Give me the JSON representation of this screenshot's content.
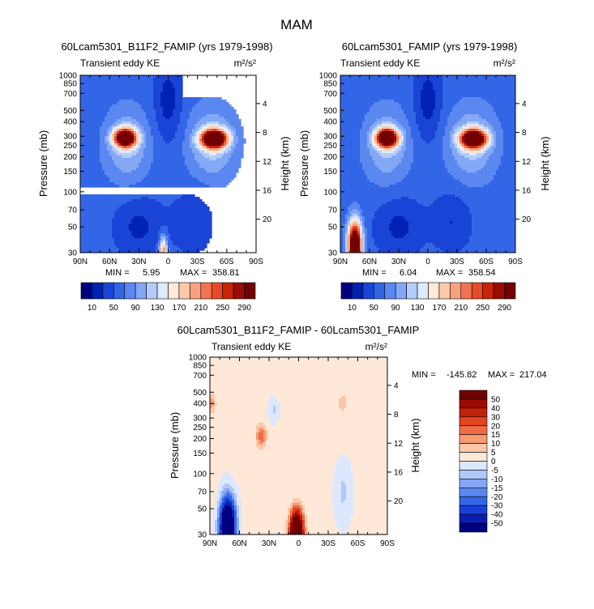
{
  "figure": {
    "season": "MAM",
    "colors": {
      "seq": [
        "#00007f",
        "#0022b3",
        "#1a44d6",
        "#3366e6",
        "#5a88f0",
        "#84a8f5",
        "#b3ccfa",
        "#ddeaff",
        "#ffe9d9",
        "#fcc9ac",
        "#f9a27f",
        "#f27352",
        "#e64a28",
        "#c82406",
        "#9c0b00",
        "#720000"
      ],
      "div": [
        "#00007f",
        "#0a1fb0",
        "#1a40d8",
        "#3366e6",
        "#5c86f0",
        "#86a7f5",
        "#b0c8fa",
        "#dde8ff",
        "#ffe8d8",
        "#fcc6a8",
        "#f89b74",
        "#f06c47",
        "#e2451f",
        "#c3220a",
        "#9c0900",
        "#700000"
      ]
    }
  },
  "chart_data": [
    {
      "type": "heatmap",
      "title": "60Lcam5301_B11F2_FAMIP (yrs 1979-1998)",
      "subtitle_left": "Transient eddy KE",
      "units": "m²/s²",
      "xlabel": "",
      "ylabel": "Pressure (mb)",
      "ylabel_right": "Height (km)",
      "x_ticks": [
        "90N",
        "60N",
        "30N",
        "0",
        "30S",
        "60S",
        "90S"
      ],
      "y_ticks": [
        "30",
        "50",
        "70",
        "100",
        "150",
        "200",
        "250",
        "300",
        "400",
        "500",
        "700",
        "850",
        "1000"
      ],
      "right_ticks": [
        "20",
        "16",
        "12",
        "8",
        "4"
      ],
      "stats": {
        "min_label": "MIN =",
        "min": "5.95",
        "max_label": "MAX =",
        "max": "358.81"
      },
      "colorbar_labels": [
        "10",
        "50",
        "90",
        "130",
        "170",
        "210",
        "250",
        "290"
      ],
      "features": [
        {
          "lat": 44,
          "p": 290,
          "peak": 320,
          "slat": 11,
          "sp": 0.18
        },
        {
          "lat": -47,
          "p": 285,
          "peak": 330,
          "slat": 13,
          "sp": 0.18
        },
        {
          "lat": 5,
          "p": 30,
          "peak": 160,
          "slat": 4,
          "sp": 0.3
        }
      ]
    },
    {
      "type": "heatmap",
      "title": "60Lcam5301_FAMIP (yrs 1979-1998)",
      "subtitle_left": "Transient eddy KE",
      "units": "m²/s²",
      "xlabel": "",
      "ylabel": "Pressure (mb)",
      "ylabel_right": "Height (km)",
      "x_ticks": [
        "90N",
        "60N",
        "30N",
        "0",
        "30S",
        "60S",
        "90S"
      ],
      "y_ticks": [
        "30",
        "50",
        "70",
        "100",
        "150",
        "200",
        "250",
        "300",
        "400",
        "500",
        "700",
        "850",
        "1000"
      ],
      "right_ticks": [
        "20",
        "16",
        "12",
        "8",
        "4"
      ],
      "stats": {
        "min_label": "MIN =",
        "min": "6.04",
        "max_label": "MAX =",
        "max": "358.54"
      },
      "colorbar_labels": [
        "10",
        "50",
        "90",
        "130",
        "170",
        "210",
        "250",
        "290"
      ],
      "features": [
        {
          "lat": 42,
          "p": 290,
          "peak": 320,
          "slat": 11,
          "sp": 0.18
        },
        {
          "lat": -47,
          "p": 285,
          "peak": 330,
          "slat": 13,
          "sp": 0.18
        },
        {
          "lat": 75,
          "p": 35,
          "peak": 330,
          "slat": 7,
          "sp": 0.45
        }
      ]
    },
    {
      "type": "heatmap",
      "title": "60Lcam5301_B11F2_FAMIP - 60Lcam5301_FAMIP",
      "subtitle_left": "Transient eddy KE",
      "units": "m²/s²",
      "xlabel": "",
      "ylabel": "Pressure (mb)",
      "ylabel_right": "Height (km)",
      "x_ticks": [
        "90N",
        "60N",
        "30N",
        "0",
        "30S",
        "60S",
        "90S"
      ],
      "y_ticks": [
        "30",
        "50",
        "70",
        "100",
        "150",
        "200",
        "250",
        "300",
        "400",
        "500",
        "700",
        "850",
        "1000"
      ],
      "right_ticks": [
        "20",
        "16",
        "12",
        "8",
        "4"
      ],
      "stats": {
        "min_label": "MIN =",
        "min": "-145.82",
        "max_label": "MAX =",
        "max": "217.04"
      },
      "colorbar_labels": [
        "50",
        "40",
        "30",
        "20",
        "15",
        "10",
        "5",
        "0",
        "-5",
        "-10",
        "-15",
        "-20",
        "-30",
        "-40",
        "-50"
      ],
      "features": [
        {
          "lat": 72,
          "p": 35,
          "peak": -110,
          "slat": 7,
          "sp": 0.5
        },
        {
          "lat": 2,
          "p": 30,
          "peak": 120,
          "slat": 6,
          "sp": 0.4
        },
        {
          "lat": 38,
          "p": 210,
          "peak": 18,
          "slat": 5,
          "sp": 0.2
        },
        {
          "lat": 88,
          "p": 400,
          "peak": 12,
          "slat": 4,
          "sp": 0.2
        },
        {
          "lat": -45,
          "p": 400,
          "peak": 4,
          "slat": 5,
          "sp": 0.25
        }
      ]
    }
  ]
}
